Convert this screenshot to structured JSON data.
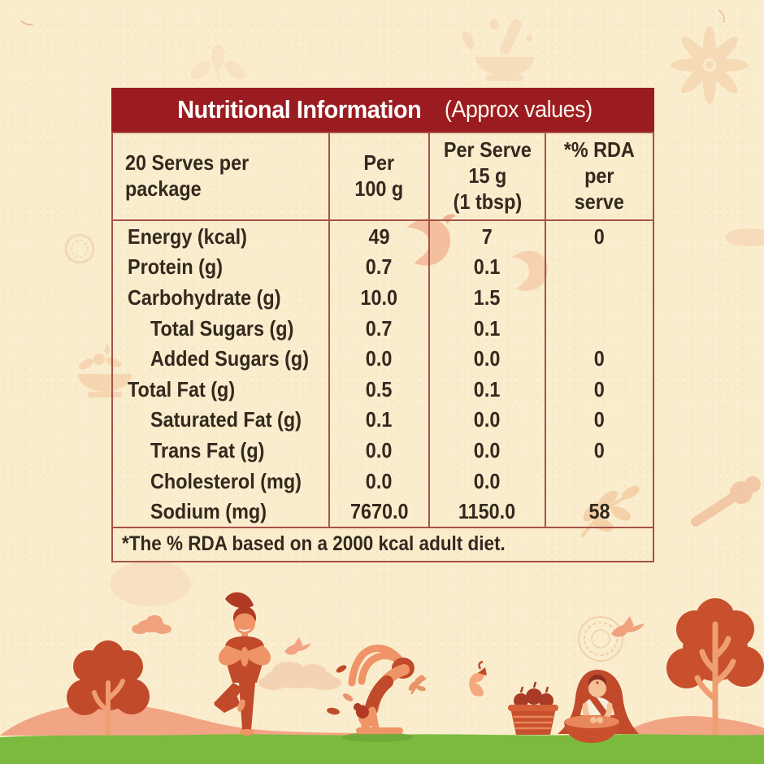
{
  "title": {
    "main": "Nutritional Information",
    "sub": "(Approx values)"
  },
  "table": {
    "columns": [
      {
        "id": "serves",
        "lines": [
          "20 Serves per",
          "package"
        ]
      },
      {
        "id": "per-100g",
        "lines": [
          "Per",
          "100 g"
        ]
      },
      {
        "id": "per-serve",
        "lines": [
          "Per Serve",
          "15 g",
          "(1 tbsp)"
        ]
      },
      {
        "id": "rda-per-serve",
        "lines": [
          "*% RDA",
          "per",
          "serve"
        ]
      }
    ],
    "rows": [
      {
        "label": "Energy (kcal)",
        "indent": false,
        "per_100g": "49",
        "per_serve": "7",
        "rda": "0"
      },
      {
        "label": "Protein (g)",
        "indent": false,
        "per_100g": "0.7",
        "per_serve": "0.1",
        "rda": ""
      },
      {
        "label": "Carbohydrate (g)",
        "indent": false,
        "per_100g": "10.0",
        "per_serve": "1.5",
        "rda": ""
      },
      {
        "label": "Total Sugars (g)",
        "indent": true,
        "per_100g": "0.7",
        "per_serve": "0.1",
        "rda": ""
      },
      {
        "label": "Added Sugars (g)",
        "indent": true,
        "per_100g": "0.0",
        "per_serve": "0.0",
        "rda": "0"
      },
      {
        "label": "Total Fat (g)",
        "indent": false,
        "per_100g": "0.5",
        "per_serve": "0.1",
        "rda": "0"
      },
      {
        "label": "Saturated Fat (g)",
        "indent": true,
        "per_100g": "0.1",
        "per_serve": "0.0",
        "rda": "0"
      },
      {
        "label": "Trans Fat (g)",
        "indent": true,
        "per_100g": "0.0",
        "per_serve": "0.0",
        "rda": "0"
      },
      {
        "label": "Cholesterol (mg)",
        "indent": true,
        "per_100g": "0.0",
        "per_serve": "0.0",
        "rda": ""
      },
      {
        "label": "Sodium (mg)",
        "indent": true,
        "per_100g": "7670.0",
        "per_serve": "1150.0",
        "rda": "58"
      }
    ],
    "footnote": "*The % RDA based on a 2000 kcal adult diet."
  },
  "colors": {
    "background": "#FAEDCE",
    "header_bg": "#9B1C20",
    "border": "#A8514A",
    "text": "#33291E",
    "grass": "#7CBA3F",
    "brick": "#C14A2B",
    "salmon": "#F2A585",
    "skin": "#EF9467",
    "watermark": "#F6DBB8"
  },
  "illustrations": [
    "star-anise-watermark",
    "mortar-pestle-watermark",
    "leaf-watermark",
    "chili-watermark",
    "bowl-watermark",
    "tree-illustration",
    "yoga-tree-pose-illustration",
    "scorpion-pose-illustration",
    "woman-grinding-illustration",
    "basket-illustration",
    "bird-illustration",
    "chili-illustration",
    "grass-strip"
  ]
}
